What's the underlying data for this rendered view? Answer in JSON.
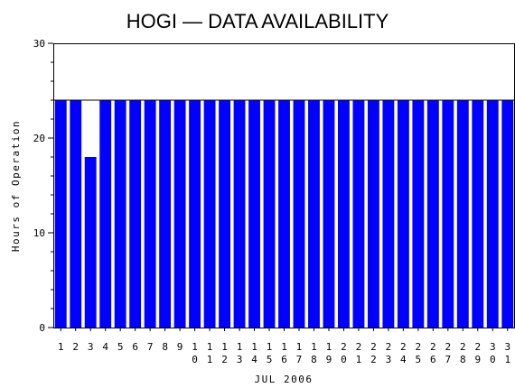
{
  "chart_data": {
    "type": "bar",
    "title": "HOGI — DATA AVAILABILITY",
    "xlabel": "JUL 2006",
    "ylabel": "Hours of Operation",
    "ylim": [
      0,
      30
    ],
    "yticks": [
      0,
      10,
      20,
      30
    ],
    "reference_line": 24,
    "grid": false,
    "legend": "none",
    "categories": [
      "1",
      "2",
      "3",
      "4",
      "5",
      "6",
      "7",
      "8",
      "9",
      "10",
      "11",
      "12",
      "13",
      "14",
      "15",
      "16",
      "17",
      "18",
      "19",
      "20",
      "21",
      "22",
      "23",
      "24",
      "25",
      "26",
      "27",
      "28",
      "29",
      "30",
      "31"
    ],
    "values": [
      24,
      24,
      18,
      24,
      24,
      24,
      24,
      24,
      24,
      24,
      24,
      24,
      24,
      24,
      24,
      24,
      24,
      24,
      24,
      24,
      24,
      24,
      24,
      24,
      24,
      24,
      24,
      24,
      24,
      24,
      24
    ],
    "bar_color": "#0000ff"
  }
}
